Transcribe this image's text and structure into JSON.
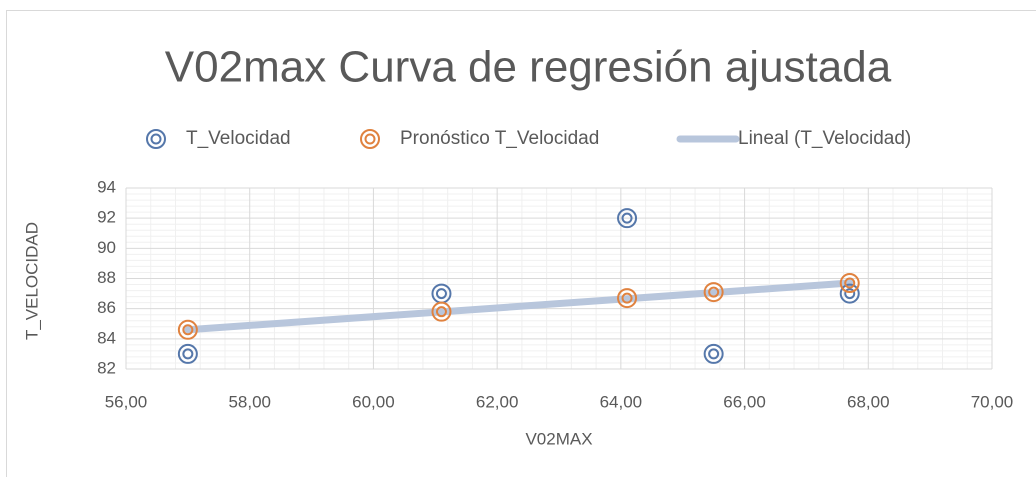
{
  "chart_data": {
    "type": "scatter",
    "title": "V02max Curva de regresión ajustada",
    "x_label": "V02MAX",
    "y_label": "T_VELOCIDAD",
    "series": [
      {
        "name": "T_Velocidad",
        "color": "#5577aa",
        "style": "marker",
        "x": [
          57,
          61.1,
          64.1,
          65.5,
          67.7
        ],
        "values": [
          83,
          87,
          92,
          83,
          87
        ]
      },
      {
        "name": "Pronóstico T_Velocidad",
        "color": "#e0823f",
        "style": "marker",
        "x": [
          57,
          61.1,
          64.1,
          65.5,
          67.7
        ],
        "values": [
          84.6,
          85.8,
          86.7,
          87.1,
          87.7
        ]
      },
      {
        "name": "Lineal (T_Velocidad)",
        "color": "#b8c6dc",
        "style": "line",
        "x": [
          57,
          67.7
        ],
        "values": [
          84.6,
          87.7
        ]
      }
    ],
    "xlim": [
      56,
      70
    ],
    "xticks": [
      {
        "value": 56,
        "label": "56,00"
      },
      {
        "value": 58,
        "label": "58,00"
      },
      {
        "value": 60,
        "label": "60,00"
      },
      {
        "value": 62,
        "label": "62,00"
      },
      {
        "value": 64,
        "label": "64,00"
      },
      {
        "value": 66,
        "label": "66,00"
      },
      {
        "value": 68,
        "label": "68,00"
      },
      {
        "value": 70,
        "label": "70,00"
      }
    ],
    "ylim": [
      82,
      94
    ],
    "yticks": [
      82,
      84,
      86,
      88,
      90,
      92,
      94
    ],
    "grid": true,
    "minor_grid": true,
    "legend": "top"
  }
}
